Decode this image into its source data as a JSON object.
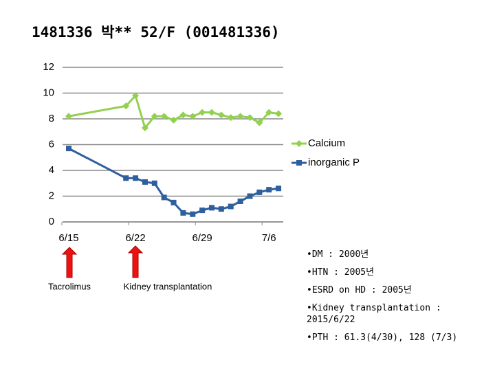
{
  "chart_data": {
    "type": "line",
    "title": "1481336 박** 52/F (001481336)",
    "x": [
      15,
      21,
      22,
      23,
      24,
      25,
      26,
      27,
      28,
      29,
      30,
      31,
      32,
      33,
      34,
      35,
      36,
      37
    ],
    "series": [
      {
        "name": "Calcium",
        "color": "#92d050",
        "marker": "diamond",
        "values": [
          8.2,
          9.0,
          9.8,
          7.3,
          8.2,
          8.2,
          7.9,
          8.3,
          8.2,
          8.5,
          8.5,
          8.3,
          8.1,
          8.2,
          8.1,
          7.7,
          8.5,
          8.4
        ]
      },
      {
        "name": "inorganic P",
        "color": "#2e5f9e",
        "marker": "square",
        "values": [
          5.7,
          3.4,
          3.4,
          3.1,
          3.0,
          1.9,
          1.5,
          0.7,
          0.6,
          0.9,
          1.1,
          1.0,
          1.2,
          1.6,
          2.0,
          2.3,
          2.5,
          2.6
        ]
      }
    ],
    "xlim": [
      14.35,
      37.5
    ],
    "xticks": [
      {
        "value": 15,
        "label": "6/15"
      },
      {
        "value": 22,
        "label": "6/22"
      },
      {
        "value": 29,
        "label": "6/29"
      },
      {
        "value": 36,
        "label": "7/6"
      }
    ],
    "ylim": [
      0,
      12
    ],
    "yticks": [
      0,
      2,
      4,
      6,
      8,
      10,
      12
    ],
    "grid": true,
    "legend": "right",
    "annotations": [
      "Tacrolimus",
      "Kidney transplantation"
    ],
    "notes": [
      "DM : 2000년",
      "HTN : 2005년",
      "ESRD on HD : 2005년",
      "Kidney transplantation : 2015/6/22",
      "PTH : 61.3(4/30), 128 (7/3)"
    ]
  }
}
